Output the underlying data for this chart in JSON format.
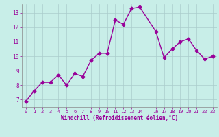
{
  "x": [
    0,
    1,
    2,
    3,
    4,
    5,
    6,
    7,
    8,
    9,
    10,
    11,
    12,
    13,
    14,
    16,
    17,
    18,
    19,
    20,
    21,
    22,
    23
  ],
  "y": [
    6.9,
    7.6,
    8.2,
    8.2,
    8.7,
    8.0,
    8.8,
    8.6,
    9.7,
    10.2,
    10.2,
    12.5,
    12.2,
    13.3,
    13.4,
    11.7,
    9.9,
    10.5,
    11.0,
    11.2,
    10.4,
    9.8,
    10.0
  ],
  "line_color": "#990099",
  "marker": "D",
  "marker_size": 2.5,
  "bg_color": "#c8eee8",
  "grid_color": "#aacccc",
  "xlabel": "Windchill (Refroidissement éolien,°C)",
  "xlabel_color": "#990099",
  "tick_color": "#990099",
  "spine_color": "#888888",
  "ylim": [
    6.5,
    13.6
  ],
  "yticks": [
    7,
    8,
    9,
    10,
    11,
    12,
    13
  ],
  "xticks": [
    0,
    1,
    2,
    3,
    4,
    5,
    6,
    7,
    8,
    9,
    10,
    11,
    12,
    13,
    14,
    16,
    17,
    18,
    19,
    20,
    21,
    22,
    23
  ],
  "line_width": 1.0
}
